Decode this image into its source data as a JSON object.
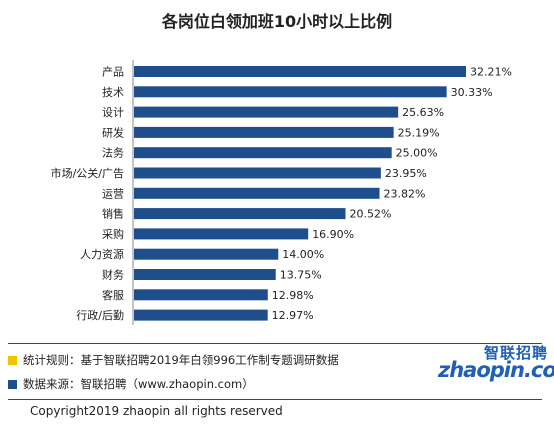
{
  "chart_data": {
    "type": "bar",
    "orientation": "horizontal",
    "title": "各岗位白领加班10小时以上比例",
    "categories": [
      "产品",
      "技术",
      "设计",
      "研发",
      "法务",
      "市场/公关/广告",
      "运营",
      "销售",
      "采购",
      "人力资源",
      "财务",
      "客服",
      "行政/后勤"
    ],
    "values": [
      32.21,
      30.33,
      25.63,
      25.19,
      25.0,
      23.95,
      23.82,
      20.52,
      16.9,
      14.0,
      13.75,
      12.98,
      12.97
    ],
    "value_labels": [
      "32.21%",
      "30.33%",
      "25.63%",
      "25.19%",
      "25.00%",
      "23.95%",
      "23.82%",
      "20.52%",
      "16.90%",
      "14.00%",
      "13.75%",
      "12.98%",
      "12.97%"
    ],
    "unit": "%",
    "xlim": [
      0,
      32.21
    ],
    "grid": false,
    "legend": "none",
    "bar_color": "#1f4e8c"
  },
  "notes": [
    {
      "label": "统计规则：基于智联招聘2019年白领996工作制专题调研数据",
      "color": "#f2c200"
    },
    {
      "label": "数据来源：智联招聘（www.zhaopin.com）",
      "color": "#1f4e8c"
    }
  ],
  "logo": {
    "cn": "智联招聘",
    "en": "zhaopin.com"
  },
  "copyright": "Copyright2019 zhaopin all rights reserved"
}
